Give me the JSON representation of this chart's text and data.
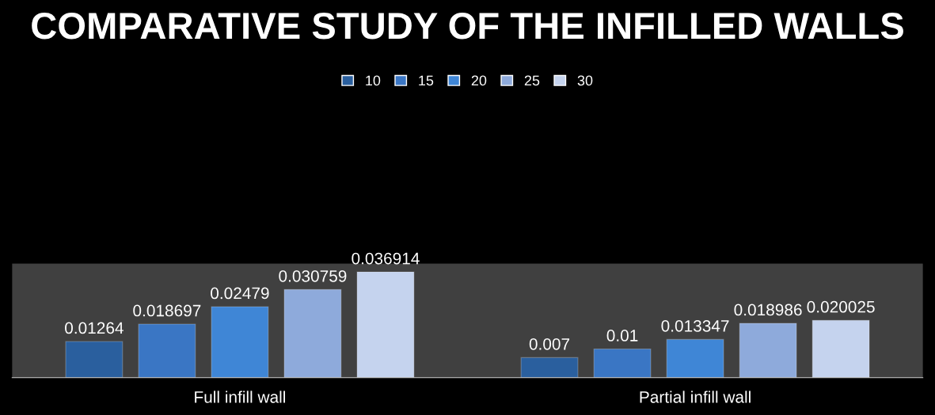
{
  "chart_data": {
    "type": "bar",
    "title": "COMPARATIVE STUDY OF THE INFILLED WALLS",
    "categories": [
      "Full infill wall",
      "Partial infill wall"
    ],
    "series": [
      {
        "name": "10",
        "color": "#2a5f9e",
        "values": [
          0.01264,
          0.007
        ]
      },
      {
        "name": "15",
        "color": "#3a76c4",
        "values": [
          0.018697,
          0.01
        ]
      },
      {
        "name": "20",
        "color": "#3f86d6",
        "values": [
          0.02479,
          0.013347
        ]
      },
      {
        "name": "25",
        "color": "#8eaadb",
        "values": [
          0.030759,
          0.018986
        ]
      },
      {
        "name": "30",
        "color": "#c5d3ee",
        "values": [
          0.036914,
          0.020025
        ]
      }
    ],
    "data_labels": true,
    "legend": "top",
    "grid": false
  }
}
